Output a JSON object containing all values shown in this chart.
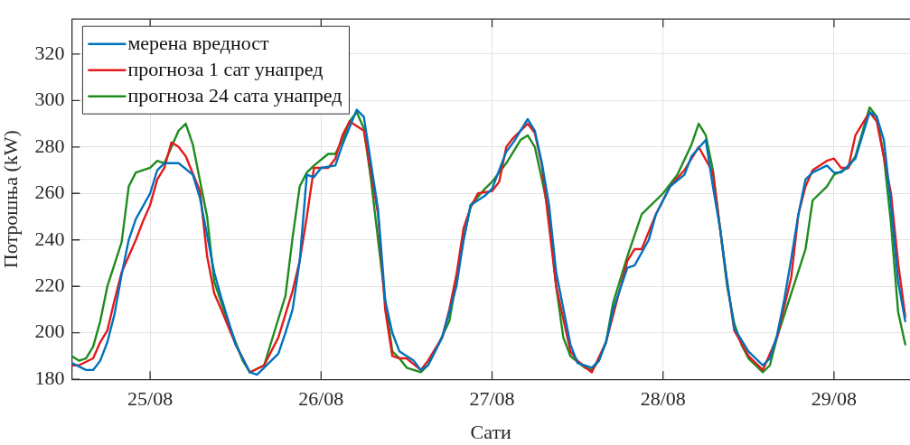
{
  "chart_data": {
    "type": "line",
    "xlabel": "Сати",
    "ylabel": "Потрошња (kW)",
    "xlim": [
      "--08-24T13:00",
      "--08-29T10:40"
    ],
    "ylim": [
      180,
      335
    ],
    "xticks": [
      {
        "value": "--08-25",
        "label": "25/08"
      },
      {
        "value": "--08-26",
        "label": "26/08"
      },
      {
        "value": "--08-27",
        "label": "27/08"
      },
      {
        "value": "--08-28",
        "label": "28/08"
      },
      {
        "value": "--08-29",
        "label": "29/08"
      }
    ],
    "yticks": [
      180,
      200,
      220,
      240,
      260,
      280,
      300,
      320
    ],
    "grid": true,
    "legend": "top left",
    "marker": "none",
    "line_style": "solid",
    "series": [
      {
        "name": "мерена вредност",
        "color": "#0072bd",
        "x": [
          "--08-24T13:00",
          "--08-24T15:00",
          "--08-24T16:00",
          "--08-24T17:00",
          "--08-24T18:00",
          "--08-24T19:00",
          "--08-24T20:00",
          "--08-24T21:00",
          "--08-24T22:00",
          "--08-25T00:00",
          "--08-25T01:00",
          "--08-25T02:00",
          "--08-25T04:00",
          "--08-25T06:00",
          "--08-25T07:00",
          "--08-25T09:00",
          "--08-25T10:00",
          "--08-25T12:00",
          "--08-25T14:00",
          "--08-25T15:00",
          "--08-25T16:00",
          "--08-25T18:00",
          "--08-25T19:00",
          "--08-25T20:00",
          "--08-25T21:00",
          "--08-25T22:00",
          "--08-25T23:00",
          "--08-26T00:00",
          "--08-26T02:00",
          "--08-26T03:00",
          "--08-26T05:00",
          "--08-26T06:00",
          "--08-26T08:00",
          "--08-26T09:00",
          "--08-26T10:00",
          "--08-26T11:00",
          "--08-26T13:00",
          "--08-26T14:00",
          "--08-26T15:00",
          "--08-26T17:00",
          "--08-26T19:00",
          "--08-26T20:00",
          "--08-26T21:00",
          "--08-26T23:00",
          "--08-27T00:00",
          "--08-27T02:00",
          "--08-27T03:00",
          "--08-27T05:00",
          "--08-27T06:00",
          "--08-27T07:00",
          "--08-27T08:00",
          "--08-27T09:00",
          "--08-27T11:00",
          "--08-27T12:00",
          "--08-27T14:00",
          "--08-27T15:00",
          "--08-27T16:00",
          "--08-27T17:00",
          "--08-27T19:00",
          "--08-27T20:00",
          "--08-27T22:00",
          "--08-27T23:00",
          "--08-28T01:00",
          "--08-28T03:00",
          "--08-28T04:00",
          "--08-28T06:00",
          "--08-28T07:00",
          "--08-28T08:00",
          "--08-28T09:00",
          "--08-28T10:00",
          "--08-28T12:00",
          "--08-28T14:00",
          "--08-28T15:00",
          "--08-28T16:00",
          "--08-28T17:00",
          "--08-28T18:00",
          "--08-28T19:00",
          "--08-28T20:00",
          "--08-28T21:00",
          "--08-28T23:00",
          "--08-29T00:00",
          "--08-29T01:00",
          "--08-29T03:00",
          "--08-29T05:00",
          "--08-29T06:00",
          "--08-29T07:00",
          "--08-29T08:00",
          "--08-29T09:00",
          "--08-29T10:00"
        ],
        "values": [
          187,
          184,
          184,
          188,
          196,
          208,
          225,
          240,
          249,
          260,
          270,
          273,
          273,
          268,
          258,
          226,
          215,
          195,
          183,
          182,
          185,
          191,
          200,
          210,
          231,
          268,
          267,
          271,
          272,
          281,
          296,
          293,
          253,
          214,
          200,
          192,
          188,
          184,
          186,
          198,
          220,
          240,
          255,
          259,
          262,
          278,
          282,
          292,
          287,
          273,
          255,
          226,
          195,
          187,
          185,
          188,
          196,
          210,
          228,
          229,
          240,
          251,
          263,
          268,
          276,
          283,
          263,
          245,
          222,
          202,
          192,
          186,
          189,
          199,
          214,
          232,
          251,
          266,
          269,
          272,
          269,
          269,
          275,
          295,
          293,
          283,
          255,
          222,
          205
        ]
      },
      {
        "name": "прогноза 1 сат унапред",
        "color": "#e31a1c",
        "x": [
          "--08-24T13:00",
          "--08-24T14:00",
          "--08-24T16:00",
          "--08-24T17:00",
          "--08-24T18:00",
          "--08-24T19:00",
          "--08-24T20:00",
          "--08-24T22:00",
          "--08-24T23:00",
          "--08-25T00:00",
          "--08-25T01:00",
          "--08-25T02:00",
          "--08-25T03:00",
          "--08-25T04:00",
          "--08-25T05:00",
          "--08-25T07:00",
          "--08-25T08:00",
          "--08-25T09:00",
          "--08-25T10:00",
          "--08-25T12:00",
          "--08-25T14:00",
          "--08-25T16:00",
          "--08-25T18:00",
          "--08-25T20:00",
          "--08-25T21:00",
          "--08-25T22:00",
          "--08-25T23:00",
          "--08-26T00:00",
          "--08-26T01:00",
          "--08-26T02:00",
          "--08-26T03:00",
          "--08-26T04:00",
          "--08-26T06:00",
          "--08-26T08:00",
          "--08-26T09:00",
          "--08-26T10:00",
          "--08-26T11:00",
          "--08-26T12:00",
          "--08-26T14:00",
          "--08-26T15:00",
          "--08-26T17:00",
          "--08-26T18:00",
          "--08-26T19:00",
          "--08-26T20:00",
          "--08-26T21:00",
          "--08-26T22:00",
          "--08-27T00:00",
          "--08-27T01:00",
          "--08-27T02:00",
          "--08-27T03:00",
          "--08-27T05:00",
          "--08-27T06:00",
          "--08-27T07:00",
          "--08-27T09:00",
          "--08-27T11:00",
          "--08-27T12:00",
          "--08-27T14:00",
          "--08-27T16:00",
          "--08-27T19:00",
          "--08-27T20:00",
          "--08-27T21:00",
          "--08-27T23:00",
          "--08-28T01:00",
          "--08-28T03:00",
          "--08-28T05:00",
          "--08-28T07:00",
          "--08-28T08:00",
          "--08-28T09:00",
          "--08-28T10:00",
          "--08-28T12:00",
          "--08-28T14:00",
          "--08-28T16:00",
          "--08-28T18:00",
          "--08-28T19:00",
          "--08-28T20:00",
          "--08-28T21:00",
          "--08-28T23:00",
          "--08-29T00:00",
          "--08-29T01:00",
          "--08-29T02:00",
          "--08-29T03:00",
          "--08-29T05:00",
          "--08-29T06:00",
          "--08-29T08:00",
          "--08-29T09:00",
          "--08-29T10:00"
        ],
        "values": [
          186,
          186,
          189,
          196,
          201,
          214,
          226,
          240,
          248,
          255,
          266,
          271,
          282,
          280,
          276,
          261,
          233,
          217,
          210,
          195,
          183,
          186,
          198,
          218,
          231,
          250,
          271,
          271,
          271,
          275,
          285,
          291,
          287,
          251,
          210,
          190,
          189,
          189,
          184,
          188,
          198,
          210,
          225,
          245,
          254,
          260,
          261,
          265,
          280,
          284,
          290,
          286,
          272,
          220,
          192,
          188,
          183,
          196,
          231,
          236,
          236,
          251,
          263,
          270,
          280,
          269,
          245,
          222,
          201,
          190,
          184,
          198,
          224,
          251,
          263,
          270,
          274,
          275,
          271,
          271,
          285,
          295,
          291,
          260,
          230,
          207
        ]
      },
      {
        "name": "прогноза 24 сата унапред",
        "color": "#1e8c1e",
        "x": [
          "--08-24T13:00",
          "--08-24T14:00",
          "--08-24T15:00",
          "--08-24T16:00",
          "--08-24T17:00",
          "--08-24T18:00",
          "--08-24T20:00",
          "--08-24T21:00",
          "--08-24T22:00",
          "--08-25T00:00",
          "--08-25T01:00",
          "--08-25T02:00",
          "--08-25T04:00",
          "--08-25T05:00",
          "--08-25T06:00",
          "--08-25T08:00",
          "--08-25T09:00",
          "--08-25T11:00",
          "--08-25T13:00",
          "--08-25T14:00",
          "--08-25T16:00",
          "--08-25T17:00",
          "--08-25T19:00",
          "--08-25T20:00",
          "--08-25T21:00",
          "--08-25T22:00",
          "--08-25T23:00",
          "--08-26T01:00",
          "--08-26T02:00",
          "--08-26T03:00",
          "--08-26T04:00",
          "--08-26T05:00",
          "--08-26T06:00",
          "--08-26T07:00",
          "--08-26T09:00",
          "--08-26T10:00",
          "--08-26T11:00",
          "--08-26T12:00",
          "--08-26T14:00",
          "--08-26T15:00",
          "--08-26T16:00",
          "--08-26T18:00",
          "--08-26T20:00",
          "--08-26T21:00",
          "--08-26T23:00",
          "--08-27T00:00",
          "--08-27T02:00",
          "--08-27T04:00",
          "--08-27T05:00",
          "--08-27T06:00",
          "--08-27T07:00",
          "--08-27T08:00",
          "--08-27T09:00",
          "--08-27T10:00",
          "--08-27T11:00",
          "--08-27T13:00",
          "--08-27T14:00",
          "--08-27T15:00",
          "--08-27T16:00",
          "--08-27T17:00",
          "--08-27T19:00",
          "--08-27T21:00",
          "--08-28T00:00",
          "--08-28T02:00",
          "--08-28T04:00",
          "--08-28T05:00",
          "--08-28T06:00",
          "--08-28T07:00",
          "--08-28T08:00",
          "--08-28T09:00",
          "--08-28T10:00",
          "--08-28T11:00",
          "--08-28T12:00",
          "--08-28T14:00",
          "--08-28T15:00",
          "--08-28T16:00",
          "--08-28T18:00",
          "--08-28T20:00",
          "--08-28T21:00",
          "--08-28T23:00",
          "--08-29T00:00",
          "--08-29T02:00",
          "--08-29T03:00",
          "--08-29T05:00",
          "--08-29T06:00",
          "--08-29T07:00",
          "--08-29T08:00",
          "--08-29T09:00",
          "--08-29T10:00"
        ],
        "values": [
          190,
          188,
          189,
          194,
          205,
          220,
          239,
          263,
          269,
          271,
          274,
          273,
          287,
          290,
          281,
          250,
          222,
          204,
          188,
          183,
          186,
          196,
          216,
          241,
          263,
          269,
          272,
          277,
          277,
          283,
          291,
          295,
          288,
          266,
          214,
          192,
          189,
          185,
          183,
          186,
          192,
          205,
          240,
          255,
          262,
          265,
          273,
          283,
          285,
          280,
          266,
          251,
          220,
          198,
          190,
          185,
          184,
          188,
          196,
          213,
          233,
          251,
          260,
          268,
          281,
          290,
          285,
          270,
          245,
          220,
          204,
          195,
          189,
          183,
          186,
          198,
          217,
          236,
          257,
          263,
          268,
          271,
          276,
          297,
          293,
          276,
          247,
          209,
          195
        ]
      }
    ]
  }
}
